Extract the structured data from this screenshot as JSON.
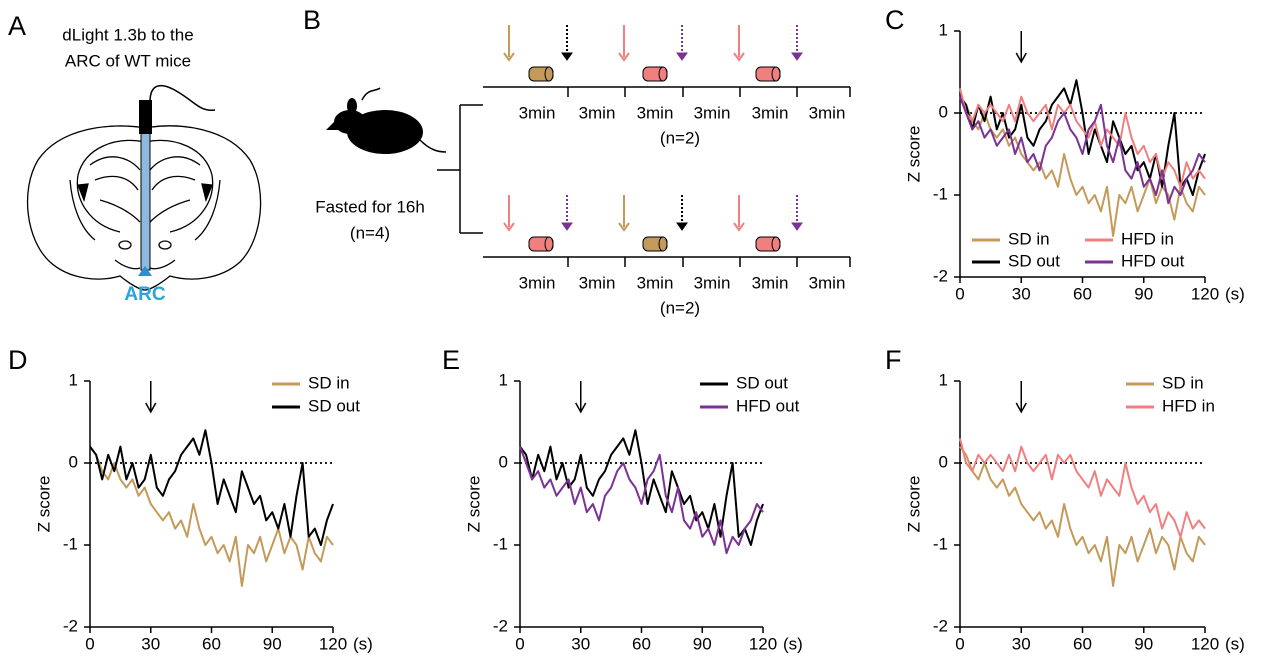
{
  "panel_a": {
    "label": "A",
    "title_lines": [
      "dLight 1.3b to the",
      "ARC of WT mice"
    ],
    "region": "ARC"
  },
  "panel_b": {
    "label": "B",
    "condition": "Fasted for 16h",
    "condition_n": "(n=4)",
    "rows": [
      {
        "segments": [
          "3min",
          "3min",
          "3min",
          "3min",
          "3min",
          "3min"
        ],
        "n": "(n=2)"
      },
      {
        "segments": [
          "3min",
          "3min",
          "3min",
          "3min",
          "3min",
          "3min"
        ],
        "n": "(n=2)"
      }
    ]
  },
  "chart_data": [
    {
      "type": "line",
      "panel": "C",
      "y_label": "Z score",
      "x_label": "(s)",
      "event_x": 30,
      "reference_y": 0,
      "xlim": [
        0,
        120
      ],
      "xticks": [
        0,
        30,
        60,
        90,
        120
      ],
      "ylim": [
        -2,
        1
      ],
      "yticks": [
        -2,
        -1,
        0,
        1
      ],
      "x": [
        0,
        3,
        6,
        9,
        12,
        15,
        18,
        21,
        24,
        27,
        30,
        33,
        36,
        39,
        42,
        45,
        48,
        51,
        54,
        57,
        60,
        63,
        66,
        69,
        72,
        75,
        78,
        81,
        84,
        87,
        90,
        93,
        96,
        99,
        102,
        105,
        108,
        111,
        114,
        117,
        120
      ],
      "series": [
        {
          "name": "SD in",
          "color": "#c49a5a",
          "values": [
            0.2,
            0.1,
            -0.1,
            -0.2,
            0.0,
            -0.2,
            -0.3,
            -0.2,
            -0.4,
            -0.3,
            -0.5,
            -0.6,
            -0.7,
            -0.6,
            -0.8,
            -0.7,
            -0.9,
            -0.5,
            -0.8,
            -1.0,
            -0.9,
            -1.1,
            -1.0,
            -1.2,
            -0.9,
            -1.5,
            -1.0,
            -1.1,
            -0.9,
            -1.2,
            -1.0,
            -0.8,
            -1.1,
            -0.9,
            -1.0,
            -1.3,
            -0.9,
            -1.1,
            -1.2,
            -0.9,
            -1.0
          ]
        },
        {
          "name": "SD out",
          "color": "#000000",
          "values": [
            0.2,
            0.1,
            -0.2,
            0.1,
            -0.1,
            0.2,
            -0.2,
            0.0,
            -0.3,
            -0.2,
            0.1,
            -0.3,
            -0.4,
            -0.2,
            -0.1,
            0.1,
            0.2,
            0.3,
            0.1,
            0.4,
            0.0,
            -0.5,
            -0.2,
            -0.4,
            -0.6,
            -0.1,
            -0.3,
            -0.5,
            -0.4,
            -0.7,
            -0.6,
            -0.8,
            -0.5,
            -0.9,
            -0.4,
            0.0,
            -0.9,
            -0.8,
            -1.0,
            -0.7,
            -0.5
          ]
        },
        {
          "name": "HFD in",
          "color": "#f08080",
          "values": [
            0.3,
            0.0,
            -0.1,
            0.1,
            0.0,
            0.1,
            0.0,
            -0.1,
            0.1,
            -0.1,
            0.2,
            0.0,
            -0.1,
            0.0,
            0.1,
            -0.2,
            0.1,
            0.0,
            0.1,
            -0.1,
            -0.2,
            -0.3,
            -0.1,
            -0.4,
            -0.2,
            -0.3,
            -0.4,
            0.0,
            -0.3,
            -0.5,
            -0.4,
            -0.6,
            -0.5,
            -0.8,
            -0.6,
            -0.7,
            -0.9,
            -0.6,
            -0.8,
            -0.7,
            -0.8
          ]
        },
        {
          "name": "HFD out",
          "color": "#7b3294",
          "values": [
            0.2,
            0.0,
            -0.2,
            -0.1,
            -0.3,
            -0.2,
            -0.4,
            -0.3,
            -0.2,
            -0.5,
            -0.3,
            -0.6,
            -0.5,
            -0.7,
            -0.4,
            -0.3,
            -0.1,
            0.0,
            -0.2,
            -0.3,
            -0.5,
            -0.2,
            -0.1,
            0.1,
            -0.4,
            -0.6,
            -0.3,
            -0.7,
            -0.8,
            -0.6,
            -0.9,
            -0.8,
            -1.0,
            -0.7,
            -1.1,
            -0.9,
            -1.0,
            -0.8,
            -0.7,
            -0.5,
            -0.6
          ]
        }
      ]
    },
    {
      "type": "line",
      "panel": "D",
      "y_label": "Z score",
      "x_label": "(s)",
      "event_x": 30,
      "reference_y": 0,
      "xlim": [
        0,
        120
      ],
      "xticks": [
        0,
        30,
        60,
        90,
        120
      ],
      "ylim": [
        -2,
        1
      ],
      "yticks": [
        -2,
        -1,
        0,
        1
      ],
      "x": [
        0,
        3,
        6,
        9,
        12,
        15,
        18,
        21,
        24,
        27,
        30,
        33,
        36,
        39,
        42,
        45,
        48,
        51,
        54,
        57,
        60,
        63,
        66,
        69,
        72,
        75,
        78,
        81,
        84,
        87,
        90,
        93,
        96,
        99,
        102,
        105,
        108,
        111,
        114,
        117,
        120
      ],
      "series": [
        {
          "name": "SD in",
          "color": "#c49a5a",
          "values": [
            0.2,
            0.1,
            -0.1,
            -0.2,
            0.0,
            -0.2,
            -0.3,
            -0.2,
            -0.4,
            -0.3,
            -0.5,
            -0.6,
            -0.7,
            -0.6,
            -0.8,
            -0.7,
            -0.9,
            -0.5,
            -0.8,
            -1.0,
            -0.9,
            -1.1,
            -1.0,
            -1.2,
            -0.9,
            -1.5,
            -1.0,
            -1.1,
            -0.9,
            -1.2,
            -1.0,
            -0.8,
            -1.1,
            -0.9,
            -1.0,
            -1.3,
            -0.9,
            -1.1,
            -1.2,
            -0.9,
            -1.0
          ]
        },
        {
          "name": "SD out",
          "color": "#000000",
          "values": [
            0.2,
            0.1,
            -0.2,
            0.1,
            -0.1,
            0.2,
            -0.2,
            0.0,
            -0.3,
            -0.2,
            0.1,
            -0.3,
            -0.4,
            -0.2,
            -0.1,
            0.1,
            0.2,
            0.3,
            0.1,
            0.4,
            0.0,
            -0.5,
            -0.2,
            -0.4,
            -0.6,
            -0.1,
            -0.3,
            -0.5,
            -0.4,
            -0.7,
            -0.6,
            -0.8,
            -0.5,
            -0.9,
            -0.4,
            0.0,
            -0.9,
            -0.8,
            -1.0,
            -0.7,
            -0.5
          ]
        }
      ]
    },
    {
      "type": "line",
      "panel": "E",
      "y_label": "Z score",
      "x_label": "(s)",
      "event_x": 30,
      "reference_y": 0,
      "xlim": [
        0,
        120
      ],
      "xticks": [
        0,
        30,
        60,
        90,
        120
      ],
      "ylim": [
        -2,
        1
      ],
      "yticks": [
        -2,
        -1,
        0,
        1
      ],
      "x": [
        0,
        3,
        6,
        9,
        12,
        15,
        18,
        21,
        24,
        27,
        30,
        33,
        36,
        39,
        42,
        45,
        48,
        51,
        54,
        57,
        60,
        63,
        66,
        69,
        72,
        75,
        78,
        81,
        84,
        87,
        90,
        93,
        96,
        99,
        102,
        105,
        108,
        111,
        114,
        117,
        120
      ],
      "series": [
        {
          "name": "SD out",
          "color": "#000000",
          "values": [
            0.2,
            0.1,
            -0.2,
            0.1,
            -0.1,
            0.2,
            -0.2,
            0.0,
            -0.3,
            -0.2,
            0.1,
            -0.3,
            -0.4,
            -0.2,
            -0.1,
            0.1,
            0.2,
            0.3,
            0.1,
            0.4,
            0.0,
            -0.5,
            -0.2,
            -0.4,
            -0.6,
            -0.1,
            -0.3,
            -0.5,
            -0.4,
            -0.7,
            -0.6,
            -0.8,
            -0.5,
            -0.9,
            -0.4,
            0.0,
            -0.9,
            -0.8,
            -1.0,
            -0.7,
            -0.5
          ]
        },
        {
          "name": "HFD out",
          "color": "#7b3294",
          "values": [
            0.2,
            0.0,
            -0.2,
            -0.1,
            -0.3,
            -0.2,
            -0.4,
            -0.3,
            -0.2,
            -0.5,
            -0.3,
            -0.6,
            -0.5,
            -0.7,
            -0.4,
            -0.3,
            -0.1,
            0.0,
            -0.2,
            -0.3,
            -0.5,
            -0.2,
            -0.1,
            0.1,
            -0.4,
            -0.6,
            -0.3,
            -0.7,
            -0.8,
            -0.6,
            -0.9,
            -0.8,
            -1.0,
            -0.7,
            -1.1,
            -0.9,
            -1.0,
            -0.8,
            -0.7,
            -0.5,
            -0.6
          ]
        }
      ]
    },
    {
      "type": "line",
      "panel": "F",
      "y_label": "Z score",
      "x_label": "(s)",
      "event_x": 30,
      "reference_y": 0,
      "xlim": [
        0,
        120
      ],
      "xticks": [
        0,
        30,
        60,
        90,
        120
      ],
      "ylim": [
        -2,
        1
      ],
      "yticks": [
        -2,
        -1,
        0,
        1
      ],
      "x": [
        0,
        3,
        6,
        9,
        12,
        15,
        18,
        21,
        24,
        27,
        30,
        33,
        36,
        39,
        42,
        45,
        48,
        51,
        54,
        57,
        60,
        63,
        66,
        69,
        72,
        75,
        78,
        81,
        84,
        87,
        90,
        93,
        96,
        99,
        102,
        105,
        108,
        111,
        114,
        117,
        120
      ],
      "series": [
        {
          "name": "SD in",
          "color": "#c49a5a",
          "values": [
            0.2,
            0.1,
            -0.1,
            -0.2,
            0.0,
            -0.2,
            -0.3,
            -0.2,
            -0.4,
            -0.3,
            -0.5,
            -0.6,
            -0.7,
            -0.6,
            -0.8,
            -0.7,
            -0.9,
            -0.5,
            -0.8,
            -1.0,
            -0.9,
            -1.1,
            -1.0,
            -1.2,
            -0.9,
            -1.5,
            -1.0,
            -1.1,
            -0.9,
            -1.2,
            -1.0,
            -0.8,
            -1.1,
            -0.9,
            -1.0,
            -1.3,
            -0.9,
            -1.1,
            -1.2,
            -0.9,
            -1.0
          ]
        },
        {
          "name": "HFD in",
          "color": "#f08080",
          "values": [
            0.3,
            0.0,
            -0.1,
            0.1,
            0.0,
            0.1,
            0.0,
            -0.1,
            0.1,
            -0.1,
            0.2,
            0.0,
            -0.1,
            0.0,
            0.1,
            -0.2,
            0.1,
            0.0,
            0.1,
            -0.1,
            -0.2,
            -0.3,
            -0.1,
            -0.4,
            -0.2,
            -0.3,
            -0.4,
            0.0,
            -0.3,
            -0.5,
            -0.4,
            -0.6,
            -0.5,
            -0.8,
            -0.6,
            -0.7,
            -0.9,
            -0.6,
            -0.8,
            -0.7,
            -0.8
          ]
        }
      ]
    }
  ]
}
